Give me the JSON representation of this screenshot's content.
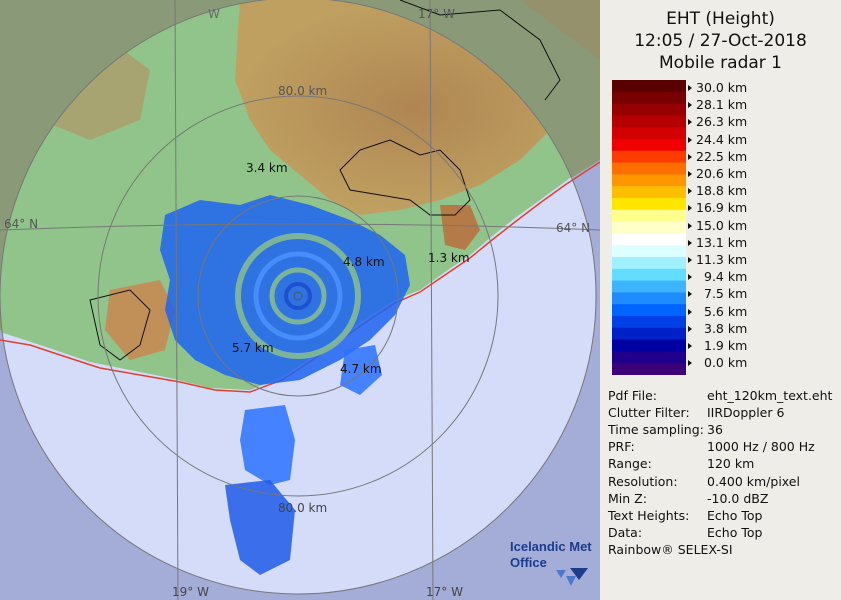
{
  "header": {
    "title": "EHT (Height)",
    "datetime": "12:05 / 27-Oct-2018",
    "radar": "Mobile radar 1"
  },
  "colorbar": {
    "labels": [
      "30.0 km",
      "28.1 km",
      "26.3 km",
      "24.4 km",
      "22.5 km",
      "20.6 km",
      "18.8 km",
      "16.9 km",
      "15.0 km",
      "13.1 km",
      "11.3 km",
      "9.4 km",
      "7.5 km",
      "5.6 km",
      "3.8 km",
      "1.9 km",
      "0.0 km"
    ],
    "colors": [
      "#5a0000",
      "#780000",
      "#960000",
      "#b40000",
      "#d20000",
      "#f00000",
      "#ff3c00",
      "#ff6e00",
      "#ff9600",
      "#ffbe00",
      "#ffe600",
      "#ffff8c",
      "#ffffc8",
      "#ffffff",
      "#dcffff",
      "#a0f0ff",
      "#64dcff",
      "#3cb4ff",
      "#1e8cff",
      "#0064ff",
      "#0040e6",
      "#0020c8",
      "#0000a0",
      "#1e008c",
      "#3c0078"
    ]
  },
  "info": [
    {
      "key": "Pdf File:",
      "value": "eht_120km_text.eht"
    },
    {
      "key": "Clutter Filter:",
      "value": "IIRDoppler 6"
    },
    {
      "key": "Time sampling:",
      "value": "36"
    },
    {
      "key": "PRF:",
      "value": "1000 Hz / 800 Hz"
    },
    {
      "key": "Range:",
      "value": "120 km"
    },
    {
      "key": "Resolution:",
      "value": "0.400 km/pixel"
    },
    {
      "key": "Min Z:",
      "value": "-10.0 dBZ"
    },
    {
      "key": "Text Heights:",
      "value": "Echo Top"
    },
    {
      "key": "Data:",
      "value": "Echo Top"
    }
  ],
  "footer": "Rainbow® SELEX-SI",
  "logo": {
    "line1": "Icelandic Met",
    "line2": "Office"
  },
  "map": {
    "gridlines": {
      "lon_top_left": "W",
      "lon_top_right": "17° W",
      "lon_bottom_left": "19° W",
      "lon_bottom_right": "17° W",
      "lat_left": "64° N",
      "lat_right": "64° N"
    },
    "range_labels": {
      "north": "80.0 km",
      "south": "80.0 km"
    },
    "echo_tops": [
      {
        "label": "3.4 km"
      },
      {
        "label": "4.8 km"
      },
      {
        "label": "1.3 km"
      },
      {
        "label": "5.7 km"
      },
      {
        "label": "4.7 km"
      }
    ],
    "colors": {
      "sea": "#d4dcfa",
      "outer_sea": "#a4acd8",
      "land": "#8cc088",
      "highland": "#c89050",
      "coast": "#e04030",
      "echo_blue": "#1e64f0"
    }
  }
}
